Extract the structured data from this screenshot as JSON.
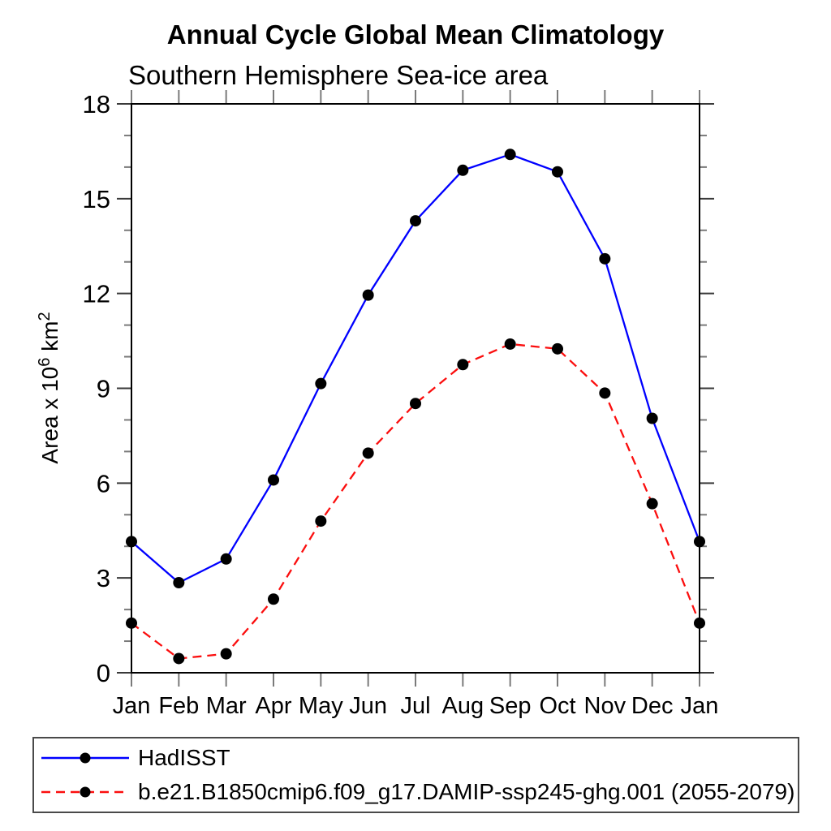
{
  "header": {
    "title": "Annual Cycle Global Mean Climatology",
    "subtitle": "Southern Hemisphere Sea-ice area"
  },
  "chart_data": {
    "type": "line",
    "title": "Annual Cycle Global Mean Climatology",
    "subtitle": "Southern Hemisphere Sea-ice area",
    "categories": [
      "Jan",
      "Feb",
      "Mar",
      "Apr",
      "May",
      "Jun",
      "Jul",
      "Aug",
      "Sep",
      "Oct",
      "Nov",
      "Dec",
      "Jan"
    ],
    "xlabel": "",
    "ylabel": "Area x 10^6 km^2",
    "ylabel_parts": [
      {
        "text": "Area x 10",
        "sup": false
      },
      {
        "text": "6",
        "sup": true
      },
      {
        "text": " km",
        "sup": false
      },
      {
        "text": "2",
        "sup": true
      }
    ],
    "ylim": [
      0,
      18
    ],
    "ytick_major": [
      0,
      3,
      6,
      9,
      12,
      15,
      18
    ],
    "ytick_minor_step": 1,
    "grid": false,
    "legend_position": "boxed-below-plot",
    "series": [
      {
        "name": "HadISST",
        "color": "#0000ff",
        "style": "solid",
        "dash": "none",
        "marker": "filled-circle",
        "marker_color": "#000000",
        "values": [
          4.15,
          2.85,
          3.6,
          6.1,
          9.15,
          11.95,
          14.3,
          15.9,
          16.4,
          15.85,
          13.1,
          8.05,
          4.15
        ]
      },
      {
        "name": "b.e21.B1850cmip6.f09_g17.DAMIP-ssp245-ghg.001 (2055-2079)",
        "color": "#fb0e0e",
        "style": "dashed",
        "dash": "11 7",
        "marker": "filled-circle",
        "marker_color": "#000000",
        "values": [
          1.57,
          0.45,
          0.6,
          2.33,
          4.8,
          6.95,
          8.52,
          9.75,
          10.4,
          10.25,
          8.85,
          5.35,
          1.57
        ]
      }
    ]
  }
}
